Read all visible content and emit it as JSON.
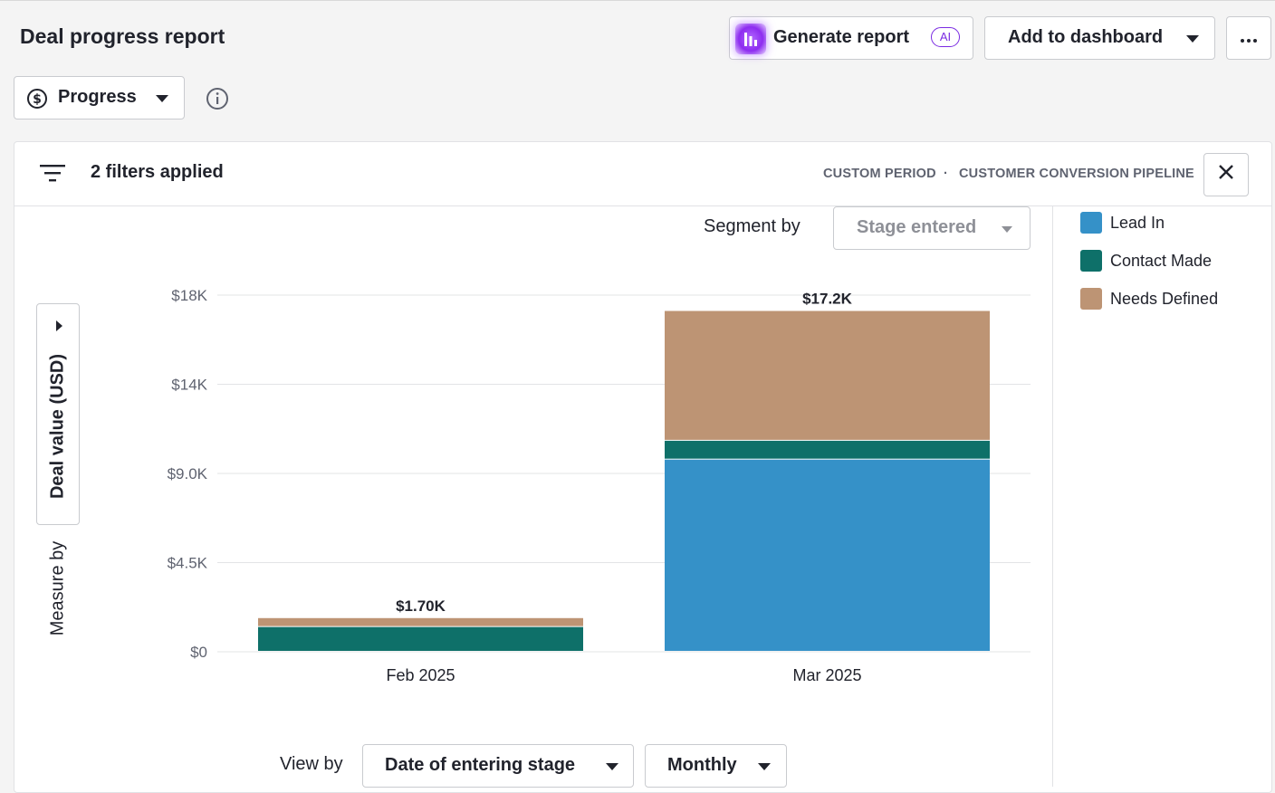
{
  "header": {
    "title": "Deal progress report",
    "generate_label": "Generate report",
    "ai_badge": "AI",
    "add_dashboard_label": "Add to dashboard",
    "more_icon": "more-horizontal-icon"
  },
  "toolbar": {
    "report_type": "Progress",
    "report_type_icon": "dollar-circle-icon",
    "info_icon": "info-icon"
  },
  "filters": {
    "applied_text": "2 filters applied",
    "period": "CUSTOM PERIOD",
    "separator": "·",
    "pipeline": "CUSTOMER CONVERSION PIPELINE"
  },
  "segment": {
    "label": "Segment by",
    "value": "Stage entered"
  },
  "measure": {
    "label": "Measure by",
    "value": "Deal value (USD)"
  },
  "view": {
    "label": "View by",
    "value": "Date of entering stage",
    "interval": "Monthly"
  },
  "colors": {
    "lead_in": "#3591c8",
    "contact_made": "#0e7069",
    "needs_defined": "#bd9474",
    "gridline": "#e3e4e6"
  },
  "chart_data": {
    "type": "bar",
    "stacked": true,
    "categories": [
      "Feb 2025",
      "Mar 2025"
    ],
    "series": [
      {
        "name": "Lead In",
        "color": "#3591c8",
        "values": [
          0,
          9700
        ]
      },
      {
        "name": "Contact Made",
        "color": "#0e7069",
        "values": [
          1250,
          950
        ]
      },
      {
        "name": "Needs Defined",
        "color": "#bd9474",
        "values": [
          450,
          6550
        ]
      }
    ],
    "totals": [
      "$1.70K",
      "$17.2K"
    ],
    "y_ticks": [
      {
        "value": 0,
        "label": "$0"
      },
      {
        "value": 4500,
        "label": "$4.5K"
      },
      {
        "value": 9000,
        "label": "$9.0K"
      },
      {
        "value": 13500,
        "label": "$14K"
      },
      {
        "value": 18000,
        "label": "$18K"
      }
    ],
    "ylim": [
      0,
      18000
    ],
    "grid": true,
    "legend_position": "right"
  }
}
